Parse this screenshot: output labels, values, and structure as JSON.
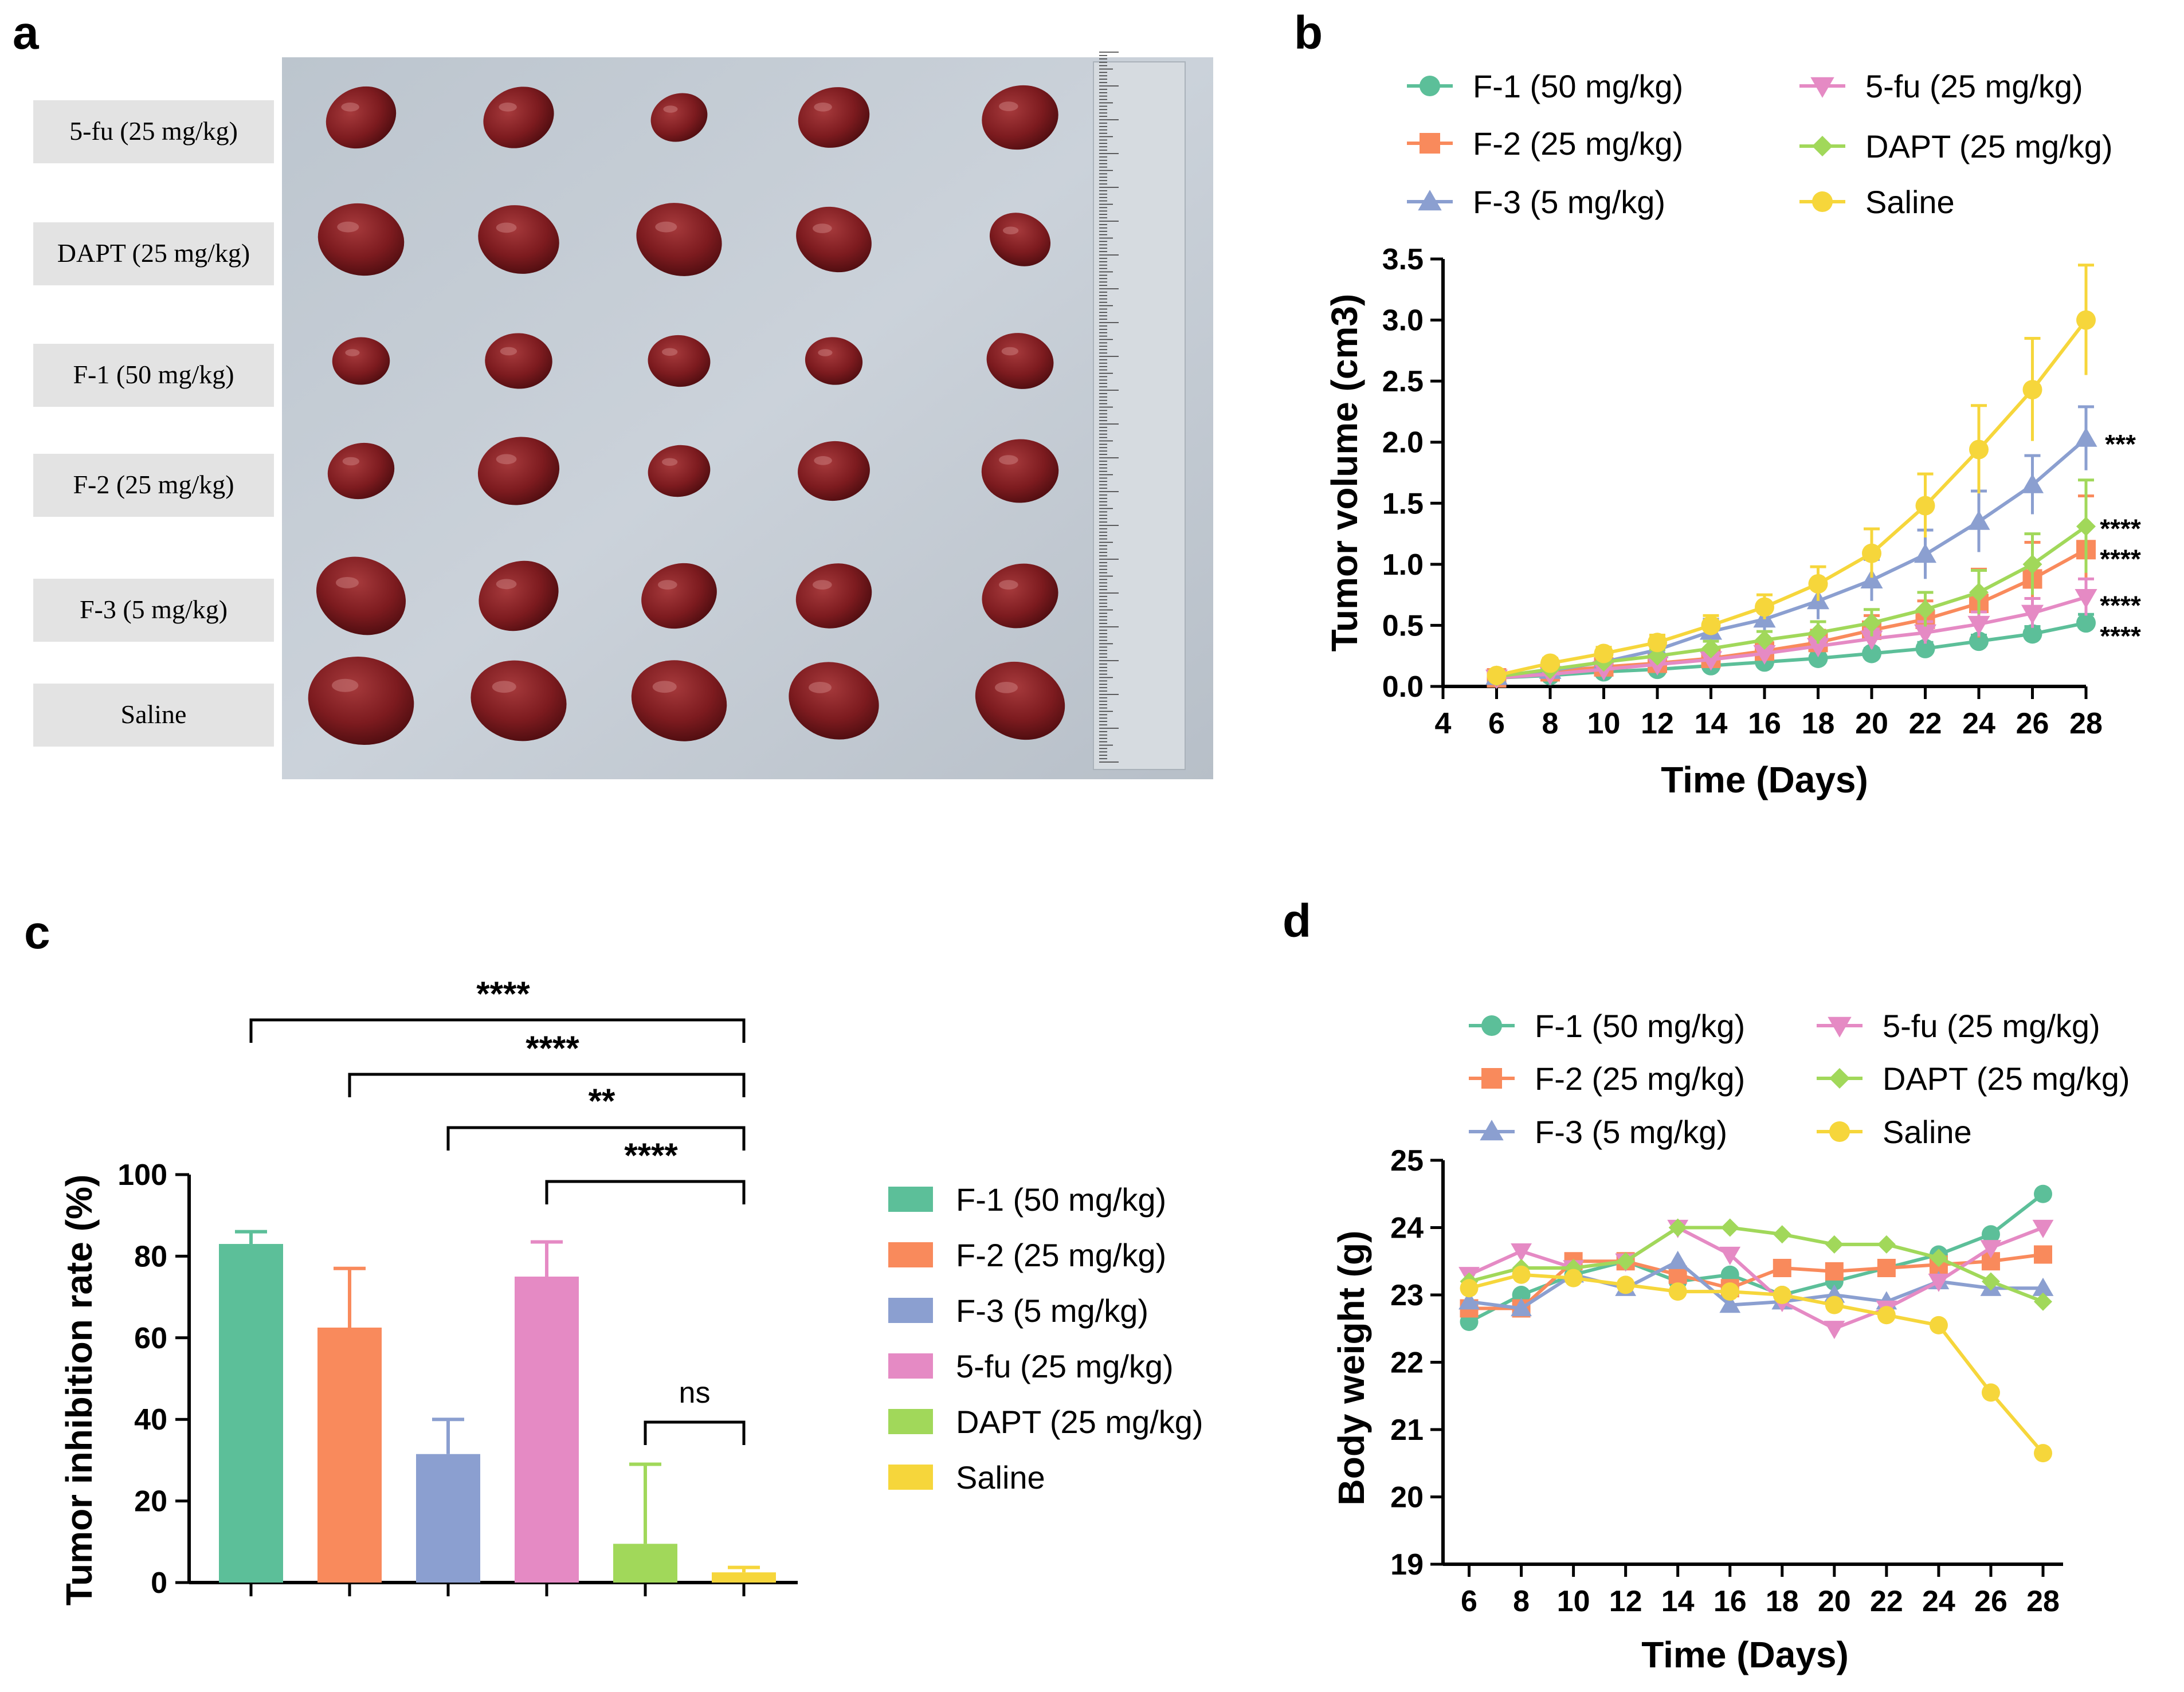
{
  "colors": {
    "F1": "#5cbf99",
    "F2": "#f98a5c",
    "F3": "#8b9fd0",
    "fu": "#e58ac4",
    "DAPT": "#a1d85a",
    "Saline": "#f6d63b",
    "axis": "#000000",
    "photo_bg": "#c9d0d8",
    "tumor": "#8a1f22",
    "label_box": "#e3e3e3"
  },
  "panel_a": {
    "letter": "a",
    "row_labels": [
      "5-fu (25 mg/kg)",
      "DAPT (25 mg/kg)",
      "F-1 (50 mg/kg)",
      "F-2 (25 mg/kg)",
      "F-3 (5 mg/kg)",
      "Saline"
    ],
    "tumors_per_row": 5,
    "tumor_size_rank": [
      [
        0.6,
        0.6,
        0.45,
        0.6,
        0.65
      ],
      [
        0.75,
        0.7,
        0.75,
        0.65,
        0.5
      ],
      [
        0.45,
        0.55,
        0.5,
        0.45,
        0.55
      ],
      [
        0.55,
        0.7,
        0.5,
        0.6,
        0.65
      ],
      [
        0.8,
        0.7,
        0.65,
        0.65,
        0.65
      ],
      [
        0.95,
        0.85,
        0.85,
        0.8,
        0.8
      ]
    ]
  },
  "legend_series": [
    "F-1 (50 mg/kg)",
    "F-2 (25 mg/kg)",
    "F-3 (5 mg/kg)",
    "5-fu (25 mg/kg)",
    "DAPT (25 mg/kg)",
    "Saline"
  ],
  "chart_data": [
    {
      "panel": "b",
      "type": "line",
      "xlabel": "Time (Days)",
      "ylabel": "Tumor volume (cm3)",
      "xlim": [
        4,
        28
      ],
      "ylim": [
        0,
        3.5
      ],
      "xticks": [
        4,
        6,
        8,
        10,
        12,
        14,
        16,
        18,
        20,
        22,
        24,
        26,
        28
      ],
      "yticks": [
        0.0,
        0.5,
        1.0,
        1.5,
        2.0,
        2.5,
        3.0,
        3.5
      ],
      "x": [
        6,
        8,
        10,
        12,
        14,
        16,
        18,
        20,
        22,
        24,
        26,
        28
      ],
      "series": [
        {
          "name": "F-1 (50 mg/kg)",
          "marker": "circle",
          "values": [
            0.07,
            0.09,
            0.12,
            0.14,
            0.17,
            0.2,
            0.23,
            0.27,
            0.31,
            0.37,
            0.43,
            0.52
          ],
          "errors": [
            0.01,
            0.02,
            0.02,
            0.02,
            0.03,
            0.03,
            0.04,
            0.04,
            0.05,
            0.05,
            0.06,
            0.07
          ]
        },
        {
          "name": "F-2 (25 mg/kg)",
          "marker": "square",
          "values": [
            0.07,
            0.12,
            0.16,
            0.19,
            0.23,
            0.29,
            0.36,
            0.46,
            0.55,
            0.68,
            0.88,
            1.12
          ],
          "errors": [
            0.02,
            0.03,
            0.04,
            0.05,
            0.06,
            0.08,
            0.1,
            0.12,
            0.15,
            0.28,
            0.3,
            0.44
          ]
        },
        {
          "name": "F-3 (5 mg/kg)",
          "marker": "triangle-up",
          "values": [
            0.08,
            0.13,
            0.2,
            0.3,
            0.45,
            0.55,
            0.7,
            0.87,
            1.08,
            1.35,
            1.65,
            2.03
          ],
          "errors": [
            0.02,
            0.03,
            0.05,
            0.07,
            0.1,
            0.12,
            0.15,
            0.17,
            0.2,
            0.25,
            0.24,
            0.26
          ]
        },
        {
          "name": "5-fu (25 mg/kg)",
          "marker": "triangle-down",
          "values": [
            0.07,
            0.1,
            0.14,
            0.18,
            0.22,
            0.27,
            0.33,
            0.39,
            0.44,
            0.51,
            0.6,
            0.73
          ],
          "errors": [
            0.01,
            0.02,
            0.03,
            0.04,
            0.05,
            0.06,
            0.07,
            0.08,
            0.09,
            0.1,
            0.12,
            0.15
          ]
        },
        {
          "name": "DAPT (25 mg/kg)",
          "marker": "diamond",
          "values": [
            0.08,
            0.14,
            0.2,
            0.25,
            0.31,
            0.38,
            0.44,
            0.52,
            0.63,
            0.77,
            1.0,
            1.31
          ],
          "errors": [
            0.02,
            0.03,
            0.04,
            0.05,
            0.06,
            0.07,
            0.09,
            0.11,
            0.14,
            0.18,
            0.25,
            0.38
          ]
        },
        {
          "name": "Saline",
          "marker": "circle",
          "values": [
            0.09,
            0.19,
            0.27,
            0.36,
            0.5,
            0.65,
            0.84,
            1.09,
            1.48,
            1.94,
            2.43,
            3.0
          ],
          "errors": [
            0.02,
            0.04,
            0.05,
            0.06,
            0.08,
            0.1,
            0.14,
            0.2,
            0.26,
            0.36,
            0.42,
            0.45
          ]
        }
      ],
      "annotations": [
        {
          "text": "***",
          "value": 2.04
        },
        {
          "text": "****",
          "value": 1.35
        },
        {
          "text": "****",
          "value": 1.1
        },
        {
          "text": "****",
          "value": 0.72
        },
        {
          "text": "****",
          "value": 0.47
        }
      ],
      "legend": "top, two columns"
    },
    {
      "panel": "c",
      "type": "bar",
      "ylabel": "Tumor inhibition rate (%)",
      "ylim": [
        0,
        100
      ],
      "yticks": [
        0,
        20,
        40,
        60,
        80,
        100
      ],
      "categories": [
        "F-1 (50 mg/kg)",
        "F-2 (25 mg/kg)",
        "F-3 (5 mg/kg)",
        "5-fu (25 mg/kg)",
        "DAPT (25 mg/kg)",
        "Saline"
      ],
      "values": [
        83,
        62.5,
        31.5,
        75,
        9.5,
        2.5
      ],
      "errors": [
        3,
        14.5,
        8.5,
        8.5,
        19.5,
        1.2
      ],
      "significance": [
        {
          "from": 0,
          "to": 5,
          "text": "****"
        },
        {
          "from": 1,
          "to": 5,
          "text": "****"
        },
        {
          "from": 2,
          "to": 5,
          "text": "**"
        },
        {
          "from": 3,
          "to": 5,
          "text": "****"
        },
        {
          "from": 4,
          "to": 5,
          "text": "ns"
        }
      ],
      "legend": "right"
    },
    {
      "panel": "d",
      "type": "line",
      "xlabel": "Time (Days)",
      "ylabel": "Body weight (g)",
      "xlim": [
        5,
        28
      ],
      "ylim": [
        19,
        25
      ],
      "xticks": [
        6,
        8,
        10,
        12,
        14,
        16,
        18,
        20,
        22,
        24,
        26,
        28
      ],
      "yticks": [
        19,
        20,
        21,
        22,
        23,
        24,
        25
      ],
      "x": [
        6,
        8,
        10,
        12,
        14,
        16,
        18,
        20,
        22,
        24,
        26,
        28
      ],
      "series": [
        {
          "name": "F-1 (50 mg/kg)",
          "marker": "circle",
          "values": [
            22.6,
            23.0,
            23.3,
            23.5,
            23.2,
            23.3,
            23.0,
            23.2,
            23.4,
            23.6,
            23.9,
            24.5
          ]
        },
        {
          "name": "F-2 (25 mg/kg)",
          "marker": "square",
          "values": [
            22.8,
            22.8,
            23.5,
            23.5,
            23.3,
            23.1,
            23.4,
            23.35,
            23.4,
            23.45,
            23.5,
            23.6
          ]
        },
        {
          "name": "F-3 (5 mg/kg)",
          "marker": "triangle-up",
          "values": [
            22.9,
            22.8,
            23.3,
            23.1,
            23.5,
            22.85,
            22.9,
            23.0,
            22.9,
            23.2,
            23.1,
            23.1
          ]
        },
        {
          "name": "5-fu (25 mg/kg)",
          "marker": "triangle-down",
          "values": [
            23.3,
            23.65,
            23.4,
            23.5,
            24.0,
            23.6,
            22.9,
            22.5,
            22.8,
            23.2,
            23.7,
            24.0
          ]
        },
        {
          "name": "DAPT (25 mg/kg)",
          "marker": "diamond",
          "values": [
            23.2,
            23.4,
            23.4,
            23.5,
            24.0,
            24.0,
            23.9,
            23.75,
            23.75,
            23.55,
            23.2,
            22.9
          ]
        },
        {
          "name": "Saline",
          "marker": "circle",
          "values": [
            23.1,
            23.3,
            23.25,
            23.15,
            23.05,
            23.05,
            23.0,
            22.85,
            22.7,
            22.55,
            21.55,
            20.65
          ]
        }
      ],
      "legend": "top, two columns"
    }
  ],
  "letters": {
    "b": "b",
    "c": "c",
    "d": "d"
  }
}
